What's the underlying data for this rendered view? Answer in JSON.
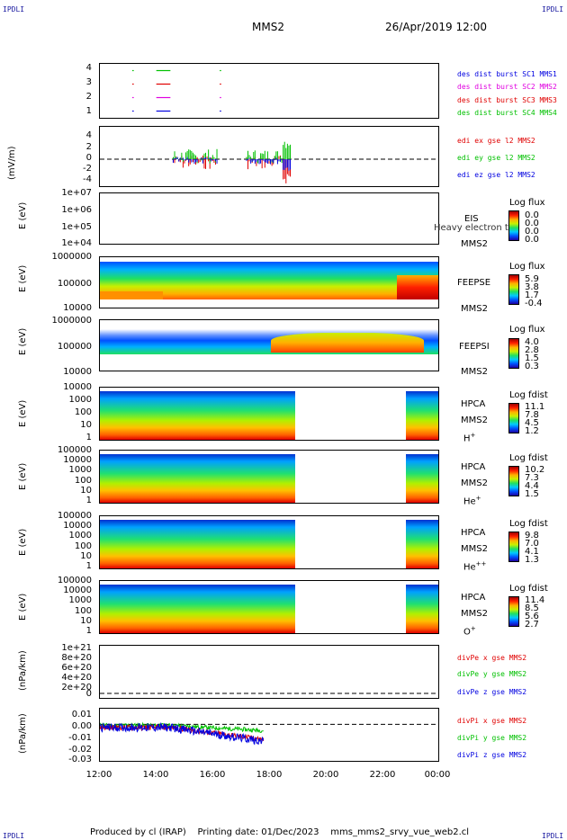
{
  "corners": {
    "tl": "IPDLI",
    "tr": "IPDLI",
    "bl": "IPDLI",
    "br": "IPDLI"
  },
  "header": {
    "mission": "MMS2",
    "date": "26/Apr/2019 12:00"
  },
  "footer": {
    "produced": "Produced by cl (IRAP)",
    "printing": "Printing date: 01/Dec/2023",
    "file": "mms_mms2_srvy_vue_web2.cl"
  },
  "colors": {
    "green": "#00c000",
    "red": "#e00000",
    "magenta": "#e000e0",
    "blue": "#0000e0",
    "dred": "#c00000"
  },
  "chart_data": [
    {
      "type": "line",
      "name": "burst",
      "yticks": [
        "4",
        "3",
        "2",
        "1"
      ],
      "ylim": [
        0.5,
        4.5
      ],
      "series": [
        {
          "name": "des dist burst SC1 MMS1",
          "y": 4,
          "segments": [
            [
              13.15,
              13.2
            ],
            [
              14.0,
              14.5
            ],
            [
              16.25,
              16.3
            ]
          ]
        },
        {
          "name": "des dist burst SC2 MMS2",
          "y": 3,
          "segments": [
            [
              13.15,
              13.2
            ],
            [
              14.0,
              14.5
            ],
            [
              16.25,
              16.3
            ]
          ]
        },
        {
          "name": "des dist burst SC3 MMS3",
          "y": 2,
          "segments": [
            [
              13.15,
              13.2
            ],
            [
              14.0,
              14.5
            ],
            [
              16.25,
              16.3
            ]
          ]
        },
        {
          "name": "des dist burst SC4 MMS4",
          "y": 1,
          "segments": [
            [
              13.15,
              13.2
            ],
            [
              14.0,
              14.5
            ],
            [
              16.25,
              16.3
            ]
          ]
        }
      ],
      "legend_colors": [
        "#0000e0",
        "#e000e0",
        "#e00000",
        "#00c000"
      ]
    },
    {
      "type": "line",
      "name": "edi",
      "ylabel": "(mV/m)",
      "yticks": [
        "4",
        "2",
        "0",
        "-2",
        "-4"
      ],
      "ylim": [
        -4.5,
        4.5
      ],
      "legend": [
        "edi ex gse l2 MMS2",
        "edi ey gse l2 MMS2",
        "edi ez gse l2 MMS2"
      ]
    },
    {
      "type": "heatmap",
      "name": "EIS",
      "ylabel": "E (eV)",
      "yticks": [
        "1e+07",
        "1e+06",
        "1e+05",
        "1e+04"
      ],
      "side": [
        "EIS",
        "MMS2"
      ],
      "overlay": "Heavy electron to",
      "cbar_title": "Log flux",
      "cbar_ticks": [
        "0.0",
        "0.0",
        "0.0",
        "0.0"
      ]
    },
    {
      "type": "heatmap",
      "name": "FEEPSE",
      "ylabel": "E (eV)",
      "yticks": [
        "1000000",
        "100000",
        "10000"
      ],
      "side": [
        "FEEPSE",
        "MMS2"
      ],
      "cbar_title": "Log flux",
      "cbar_ticks": [
        "5.9",
        "3.8",
        "1.7",
        "-0.4"
      ]
    },
    {
      "type": "heatmap",
      "name": "FEEPSI",
      "ylabel": "E (eV)",
      "yticks": [
        "1000000",
        "100000",
        "10000"
      ],
      "side": [
        "FEEPSI",
        "MMS2"
      ],
      "cbar_title": "Log flux",
      "cbar_ticks": [
        "4.0",
        "2.8",
        "1.5",
        "0.3"
      ]
    },
    {
      "type": "heatmap",
      "name": "HPCA H+",
      "ylabel": "E (eV)",
      "yticks": [
        "10000",
        "1000",
        "100",
        "10",
        "1"
      ],
      "side": [
        "HPCA",
        "MMS2"
      ],
      "species": "H",
      "sup": "+",
      "cbar_title": "Log fdist",
      "cbar_ticks": [
        "11.1",
        "7.8",
        "4.5",
        "1.2"
      ]
    },
    {
      "type": "heatmap",
      "name": "HPCA He+",
      "ylabel": "E (eV)",
      "yticks": [
        "100000",
        "10000",
        "1000",
        "100",
        "10",
        "1"
      ],
      "side": [
        "HPCA",
        "MMS2"
      ],
      "species": "He",
      "sup": "+",
      "cbar_title": "Log fdist",
      "cbar_ticks": [
        "10.2",
        "7.3",
        "4.4",
        "1.5"
      ]
    },
    {
      "type": "heatmap",
      "name": "HPCA He++",
      "ylabel": "E (eV)",
      "yticks": [
        "100000",
        "10000",
        "1000",
        "100",
        "10",
        "1"
      ],
      "side": [
        "HPCA",
        "MMS2"
      ],
      "species": "He",
      "sup": "++",
      "cbar_title": "Log fdist",
      "cbar_ticks": [
        "9.8",
        "7.0",
        "4.1",
        "1.3"
      ]
    },
    {
      "type": "heatmap",
      "name": "HPCA O+",
      "ylabel": "E (eV)",
      "yticks": [
        "100000",
        "10000",
        "1000",
        "100",
        "10",
        "1"
      ],
      "side": [
        "HPCA",
        "MMS2"
      ],
      "species": "O",
      "sup": "+",
      "cbar_title": "Log fdist",
      "cbar_ticks": [
        "11.4",
        "8.5",
        "5.6",
        "2.7"
      ]
    },
    {
      "type": "line",
      "name": "divPe",
      "ylabel": "(nPa/km)",
      "yticks": [
        "1e+21",
        "8e+20",
        "6e+20",
        "4e+20",
        "2e+20",
        "0"
      ],
      "legend": [
        "divPe x gse MMS2",
        "divPe y gse MMS2",
        "divPe z gse MMS2"
      ]
    },
    {
      "type": "line",
      "name": "divPi",
      "ylabel": "(nPa/km)",
      "yticks": [
        "0.01",
        "0.00",
        "-0.01",
        "-0.02",
        "-0.03"
      ],
      "ylim": [
        -0.035,
        0.015
      ],
      "legend": [
        "divPi x gse MMS2",
        "divPi y gse MMS2",
        "divPi z gse MMS2"
      ]
    }
  ],
  "xaxis": {
    "ticks": [
      "12:00",
      "14:00",
      "16:00",
      "18:00",
      "20:00",
      "22:00",
      "00:00"
    ],
    "range_hours": [
      12,
      24
    ]
  }
}
